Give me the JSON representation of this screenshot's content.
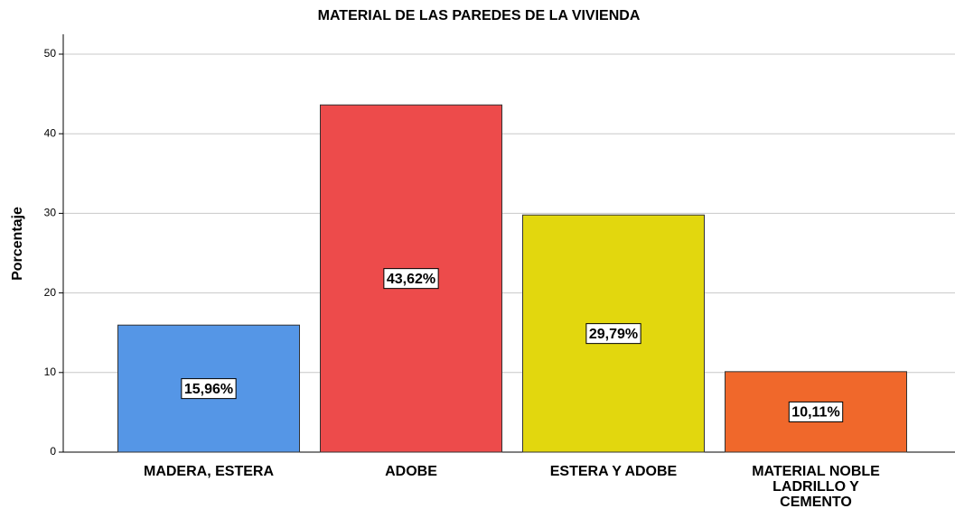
{
  "chart_data": {
    "type": "bar",
    "title": "MATERIAL DE LAS PAREDES DE LA VIVIENDA",
    "y_label": "Porcentaje",
    "categories": [
      "MADERA, ESTERA",
      "ADOBE",
      "ESTERA Y ADOBE",
      "MATERIAL NOBLE LADRILLO Y CEMENTO"
    ],
    "values": [
      15.96,
      43.62,
      29.79,
      10.11
    ],
    "value_labels": [
      "15,96%",
      "43,62%",
      "29,79%",
      "10,11%"
    ],
    "colors": [
      "#5596e6",
      "#ed4b4b",
      "#e2d70e",
      "#f0682b"
    ],
    "ylim": [
      0,
      50
    ],
    "yticks": [
      0,
      10,
      20,
      30,
      40,
      50
    ],
    "grid": true
  }
}
